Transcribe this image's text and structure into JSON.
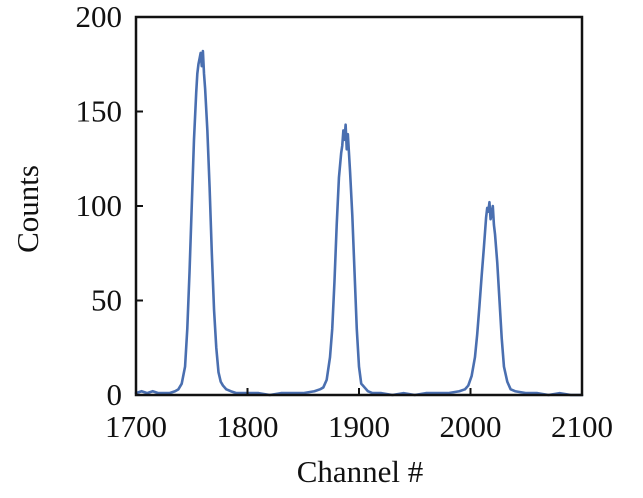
{
  "chart_data": {
    "type": "line",
    "title": "",
    "xlabel": "Channel #",
    "ylabel": "Counts",
    "xlim": [
      1700,
      2100
    ],
    "ylim": [
      0,
      200
    ],
    "x_ticks": [
      1700,
      1800,
      1900,
      2000,
      2100
    ],
    "y_ticks": [
      0,
      50,
      100,
      150,
      200
    ],
    "grid": false,
    "legend": "none",
    "colors": {
      "line": "#4a6fb0",
      "frame": "#111111"
    },
    "series": [
      {
        "x": [
          1700,
          1705,
          1710,
          1715,
          1720,
          1725,
          1730,
          1735,
          1738,
          1741,
          1744,
          1746,
          1748,
          1750,
          1752,
          1754,
          1755,
          1756,
          1757,
          1758,
          1759,
          1760,
          1761,
          1762,
          1764,
          1766,
          1768,
          1770,
          1772,
          1774,
          1776,
          1778,
          1781,
          1785,
          1790,
          1800,
          1810,
          1820,
          1830,
          1840,
          1850,
          1860,
          1865,
          1868,
          1871,
          1874,
          1876,
          1878,
          1880,
          1882,
          1884,
          1885,
          1886,
          1887,
          1888,
          1889,
          1890,
          1891,
          1892,
          1894,
          1896,
          1898,
          1900,
          1902,
          1905,
          1908,
          1912,
          1920,
          1930,
          1940,
          1950,
          1960,
          1970,
          1980,
          1990,
          1995,
          1998,
          2001,
          2004,
          2006,
          2008,
          2010,
          2012,
          2013,
          2014,
          2015,
          2016,
          2017,
          2018,
          2019,
          2020,
          2021,
          2022,
          2024,
          2026,
          2028,
          2030,
          2033,
          2036,
          2040,
          2050,
          2060,
          2070,
          2080,
          2090,
          2100
        ],
        "y": [
          1,
          2,
          1,
          2,
          1,
          1,
          1,
          2,
          3,
          6,
          15,
          35,
          65,
          100,
          135,
          160,
          170,
          175,
          178,
          181,
          174,
          182,
          170,
          162,
          140,
          110,
          75,
          45,
          25,
          12,
          7,
          5,
          3,
          2,
          1,
          1,
          1,
          0,
          1,
          1,
          1,
          2,
          3,
          4,
          8,
          20,
          35,
          60,
          90,
          115,
          128,
          132,
          140,
          135,
          143,
          130,
          138,
          128,
          118,
          95,
          65,
          35,
          15,
          6,
          4,
          2,
          1,
          1,
          0,
          1,
          0,
          1,
          1,
          1,
          2,
          3,
          5,
          10,
          20,
          32,
          47,
          63,
          78,
          86,
          94,
          99,
          97,
          102,
          93,
          96,
          100,
          90,
          85,
          70,
          50,
          30,
          15,
          7,
          3,
          2,
          1,
          1,
          0,
          1,
          0,
          0
        ]
      }
    ]
  }
}
